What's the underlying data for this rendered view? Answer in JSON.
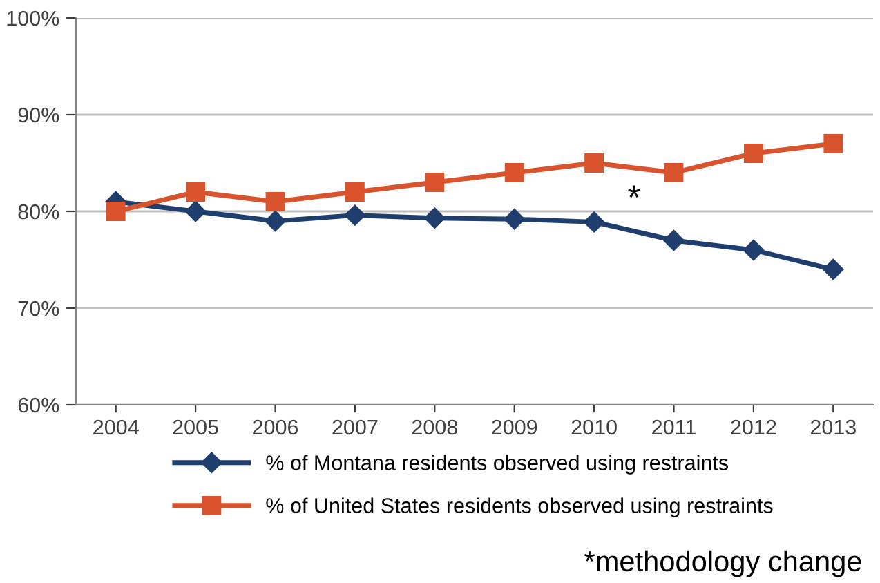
{
  "chart_data": {
    "type": "line",
    "categories": [
      "2004",
      "2005",
      "2006",
      "2007",
      "2008",
      "2009",
      "2010",
      "2011",
      "2012",
      "2013"
    ],
    "series": [
      {
        "name": "% of Montana residents observed using restraints",
        "color": "#1f3e6e",
        "marker": "diamond",
        "values": [
          81,
          80,
          79,
          79.6,
          79.3,
          79.2,
          78.9,
          77,
          76,
          74
        ]
      },
      {
        "name": "% of United States residents observed using restraints",
        "color": "#d9532c",
        "marker": "square",
        "values": [
          80,
          82,
          81,
          82,
          83,
          84,
          85,
          84,
          86,
          87
        ]
      }
    ],
    "ylim": [
      60,
      100
    ],
    "yticks": [
      {
        "value": 60,
        "label": "60%"
      },
      {
        "value": 70,
        "label": "70%"
      },
      {
        "value": 80,
        "label": "80%"
      },
      {
        "value": 90,
        "label": "90%"
      },
      {
        "value": 100,
        "label": "100%"
      }
    ],
    "grid": "y",
    "legend": "bottom",
    "line_style": "solid",
    "annotations": [
      "*",
      "*methodology change"
    ]
  }
}
